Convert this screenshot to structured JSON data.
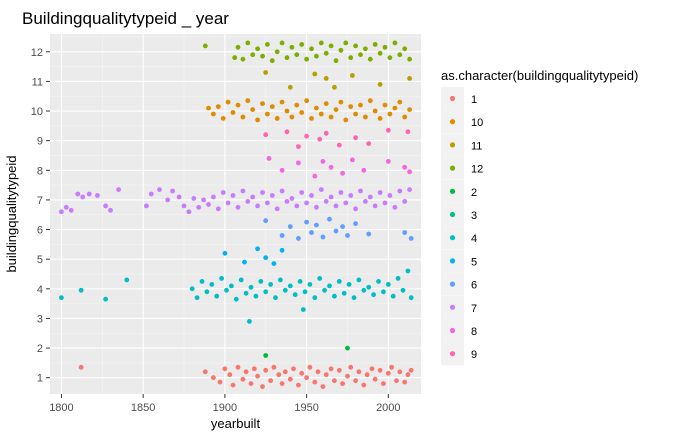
{
  "chart_data": {
    "type": "scatter",
    "title": "Buildingqualitytypeid _ year",
    "xlabel": "yearbuilt",
    "ylabel": "buildingqualitytypeid",
    "xlim": [
      1793,
      2020
    ],
    "ylim": [
      0.45,
      12.6
    ],
    "x_ticks": [
      1800,
      1850,
      1900,
      1950,
      2000
    ],
    "y_ticks": [
      1,
      2,
      3,
      4,
      5,
      6,
      7,
      8,
      9,
      10,
      11,
      12
    ],
    "grid": true,
    "legend_position": "right",
    "legend_title": "as.character(buildingqualitytypeid)",
    "jitter": "points are jittered vertically by about ±0.4 around each integer category",
    "series": [
      {
        "name": "1",
        "y": 1,
        "color": "#F8766D",
        "points": [
          [
            1812,
            1.35
          ],
          [
            1888,
            1.2
          ],
          [
            1893,
            1.0
          ],
          [
            1897,
            0.85
          ],
          [
            1900,
            1.3
          ],
          [
            1903,
            1.1
          ],
          [
            1905,
            0.75
          ],
          [
            1908,
            1.35
          ],
          [
            1911,
            0.95
          ],
          [
            1913,
            1.2
          ],
          [
            1916,
            0.8
          ],
          [
            1918,
            1.3
          ],
          [
            1920,
            1.05
          ],
          [
            1923,
            0.7
          ],
          [
            1925,
            1.25
          ],
          [
            1928,
            0.9
          ],
          [
            1930,
            1.35
          ],
          [
            1933,
            1.1
          ],
          [
            1935,
            0.8
          ],
          [
            1937,
            1.2
          ],
          [
            1940,
            0.95
          ],
          [
            1942,
            1.3
          ],
          [
            1945,
            0.75
          ],
          [
            1947,
            1.15
          ],
          [
            1950,
            1.0
          ],
          [
            1952,
            1.35
          ],
          [
            1955,
            0.85
          ],
          [
            1957,
            1.2
          ],
          [
            1960,
            0.7
          ],
          [
            1962,
            1.1
          ],
          [
            1965,
            1.3
          ],
          [
            1967,
            0.9
          ],
          [
            1970,
            1.25
          ],
          [
            1972,
            0.8
          ],
          [
            1975,
            1.05
          ],
          [
            1977,
            1.35
          ],
          [
            1980,
            0.9
          ],
          [
            1982,
            1.2
          ],
          [
            1985,
            0.75
          ],
          [
            1987,
            1.1
          ],
          [
            1990,
            1.3
          ],
          [
            1992,
            0.95
          ],
          [
            1995,
            1.25
          ],
          [
            1997,
            0.8
          ],
          [
            2000,
            1.15
          ],
          [
            2002,
            1.35
          ],
          [
            2005,
            0.9
          ],
          [
            2007,
            1.2
          ],
          [
            2010,
            0.85
          ],
          [
            2012,
            1.1
          ],
          [
            2014,
            1.25
          ]
        ]
      },
      {
        "name": "10",
        "y": 10,
        "color": "#DE8C00",
        "points": [
          [
            1890,
            10.1
          ],
          [
            1893,
            9.9
          ],
          [
            1896,
            10.15
          ],
          [
            1899,
            9.75
          ],
          [
            1902,
            10.3
          ],
          [
            1905,
            9.95
          ],
          [
            1908,
            10.2
          ],
          [
            1911,
            9.8
          ],
          [
            1914,
            10.35
          ],
          [
            1917,
            10.05
          ],
          [
            1920,
            9.7
          ],
          [
            1923,
            10.25
          ],
          [
            1926,
            9.9
          ],
          [
            1929,
            10.15
          ],
          [
            1932,
            9.75
          ],
          [
            1935,
            10.3
          ],
          [
            1938,
            10.0
          ],
          [
            1941,
            9.8
          ],
          [
            1944,
            10.2
          ],
          [
            1947,
            9.95
          ],
          [
            1950,
            10.35
          ],
          [
            1953,
            9.75
          ],
          [
            1956,
            10.1
          ],
          [
            1959,
            9.9
          ],
          [
            1962,
            10.25
          ],
          [
            1965,
            9.8
          ],
          [
            1968,
            10.05
          ],
          [
            1971,
            10.3
          ],
          [
            1974,
            9.7
          ],
          [
            1977,
            10.15
          ],
          [
            1980,
            9.9
          ],
          [
            1983,
            10.2
          ],
          [
            1986,
            9.8
          ],
          [
            1989,
            10.35
          ],
          [
            1992,
            10.0
          ],
          [
            1995,
            9.75
          ],
          [
            1998,
            10.2
          ],
          [
            2001,
            9.9
          ],
          [
            2004,
            10.1
          ],
          [
            2007,
            10.3
          ],
          [
            2010,
            9.8
          ],
          [
            2013,
            10.05
          ]
        ]
      },
      {
        "name": "11",
        "y": 11,
        "color": "#B79F00",
        "points": [
          [
            1925,
            11.3
          ],
          [
            1940,
            10.8
          ],
          [
            1955,
            11.25
          ],
          [
            1962,
            11.1
          ],
          [
            1967,
            10.8
          ],
          [
            1978,
            11.2
          ],
          [
            1995,
            10.9
          ],
          [
            2013,
            11.1
          ]
        ]
      },
      {
        "name": "12",
        "y": 12,
        "color": "#7CAE00",
        "points": [
          [
            1888,
            12.2
          ],
          [
            1906,
            11.8
          ],
          [
            1908,
            12.15
          ],
          [
            1911,
            11.75
          ],
          [
            1914,
            12.3
          ],
          [
            1917,
            11.9
          ],
          [
            1920,
            12.1
          ],
          [
            1923,
            11.85
          ],
          [
            1926,
            12.25
          ],
          [
            1929,
            11.7
          ],
          [
            1932,
            12.0
          ],
          [
            1935,
            12.3
          ],
          [
            1938,
            11.8
          ],
          [
            1941,
            12.15
          ],
          [
            1944,
            11.9
          ],
          [
            1947,
            12.25
          ],
          [
            1950,
            11.75
          ],
          [
            1953,
            12.1
          ],
          [
            1956,
            11.85
          ],
          [
            1959,
            12.3
          ],
          [
            1962,
            11.95
          ],
          [
            1965,
            12.2
          ],
          [
            1968,
            11.7
          ],
          [
            1971,
            12.05
          ],
          [
            1974,
            12.3
          ],
          [
            1977,
            11.8
          ],
          [
            1980,
            12.2
          ],
          [
            1983,
            11.9
          ],
          [
            1986,
            12.1
          ],
          [
            1989,
            11.75
          ],
          [
            1992,
            12.25
          ],
          [
            1995,
            11.95
          ],
          [
            1998,
            12.15
          ],
          [
            2001,
            11.8
          ],
          [
            2004,
            12.3
          ],
          [
            2007,
            11.9
          ],
          [
            2010,
            12.1
          ],
          [
            2013,
            11.75
          ]
        ]
      },
      {
        "name": "2",
        "y": 2,
        "color": "#00BA38",
        "points": [
          [
            1925,
            1.75
          ],
          [
            1975,
            2.0
          ]
        ]
      },
      {
        "name": "3",
        "y": 3,
        "color": "#00C08B",
        "points": []
      },
      {
        "name": "4",
        "y": 4,
        "color": "#00BFC4",
        "points": [
          [
            1800,
            3.7
          ],
          [
            1812,
            3.95
          ],
          [
            1827,
            3.65
          ],
          [
            1840,
            4.3
          ],
          [
            1880,
            4.0
          ],
          [
            1883,
            3.7
          ],
          [
            1886,
            4.25
          ],
          [
            1889,
            3.9
          ],
          [
            1892,
            4.15
          ],
          [
            1895,
            3.75
          ],
          [
            1898,
            4.35
          ],
          [
            1901,
            3.95
          ],
          [
            1904,
            4.1
          ],
          [
            1907,
            3.65
          ],
          [
            1910,
            4.3
          ],
          [
            1913,
            3.85
          ],
          [
            1915,
            2.9
          ],
          [
            1916,
            4.05
          ],
          [
            1919,
            3.75
          ],
          [
            1922,
            4.25
          ],
          [
            1925,
            3.9
          ],
          [
            1928,
            4.15
          ],
          [
            1931,
            3.7
          ],
          [
            1934,
            4.3
          ],
          [
            1937,
            3.95
          ],
          [
            1940,
            4.1
          ],
          [
            1943,
            3.8
          ],
          [
            1946,
            4.25
          ],
          [
            1948,
            3.3
          ],
          [
            1949,
            3.9
          ],
          [
            1952,
            4.15
          ],
          [
            1955,
            3.7
          ],
          [
            1958,
            4.35
          ],
          [
            1961,
            3.95
          ],
          [
            1964,
            4.1
          ],
          [
            1967,
            3.75
          ],
          [
            1970,
            4.25
          ],
          [
            1973,
            3.85
          ],
          [
            1976,
            4.15
          ],
          [
            1979,
            3.7
          ],
          [
            1982,
            4.3
          ],
          [
            1985,
            3.95
          ],
          [
            1988,
            4.05
          ],
          [
            1991,
            3.8
          ],
          [
            1994,
            4.25
          ],
          [
            1997,
            3.9
          ],
          [
            2000,
            4.15
          ],
          [
            2003,
            3.75
          ],
          [
            2006,
            4.35
          ],
          [
            2009,
            3.95
          ],
          [
            2012,
            4.6
          ],
          [
            2014,
            3.7
          ]
        ]
      },
      {
        "name": "5",
        "y": 5,
        "color": "#00B4F0",
        "points": [
          [
            1900,
            5.2
          ],
          [
            1912,
            4.9
          ],
          [
            1920,
            5.35
          ],
          [
            1925,
            5.05
          ],
          [
            1930,
            4.85
          ],
          [
            1935,
            5.3
          ]
        ]
      },
      {
        "name": "6",
        "y": 6,
        "color": "#619CFF",
        "points": [
          [
            1925,
            6.3
          ],
          [
            1935,
            5.8
          ],
          [
            1940,
            6.1
          ],
          [
            1945,
            5.7
          ],
          [
            1950,
            6.25
          ],
          [
            1953,
            5.9
          ],
          [
            1956,
            6.15
          ],
          [
            1960,
            5.75
          ],
          [
            1964,
            6.35
          ],
          [
            1968,
            5.95
          ],
          [
            1972,
            6.1
          ],
          [
            1975,
            5.8
          ],
          [
            1980,
            6.2
          ],
          [
            1988,
            5.85
          ],
          [
            2010,
            5.9
          ],
          [
            2014,
            5.7
          ]
        ]
      },
      {
        "name": "7",
        "y": 7,
        "color": "#C77CFF",
        "points": [
          [
            1800,
            6.6
          ],
          [
            1803,
            6.75
          ],
          [
            1806,
            6.65
          ],
          [
            1810,
            7.2
          ],
          [
            1813,
            7.1
          ],
          [
            1817,
            7.2
          ],
          [
            1822,
            7.15
          ],
          [
            1827,
            6.8
          ],
          [
            1830,
            6.65
          ],
          [
            1835,
            7.35
          ],
          [
            1852,
            6.8
          ],
          [
            1855,
            7.2
          ],
          [
            1860,
            7.35
          ],
          [
            1865,
            7.0
          ],
          [
            1868,
            7.3
          ],
          [
            1872,
            7.1
          ],
          [
            1875,
            6.8
          ],
          [
            1878,
            6.6
          ],
          [
            1881,
            7.05
          ],
          [
            1884,
            6.75
          ],
          [
            1887,
            7.0
          ],
          [
            1890,
            6.85
          ],
          [
            1893,
            7.1
          ],
          [
            1896,
            6.7
          ],
          [
            1899,
            7.25
          ],
          [
            1902,
            6.9
          ],
          [
            1905,
            7.15
          ],
          [
            1908,
            6.75
          ],
          [
            1911,
            7.3
          ],
          [
            1914,
            6.95
          ],
          [
            1917,
            7.1
          ],
          [
            1920,
            6.8
          ],
          [
            1923,
            7.25
          ],
          [
            1926,
            6.9
          ],
          [
            1929,
            7.15
          ],
          [
            1932,
            6.7
          ],
          [
            1935,
            7.3
          ],
          [
            1938,
            6.95
          ],
          [
            1941,
            7.05
          ],
          [
            1944,
            6.8
          ],
          [
            1947,
            7.25
          ],
          [
            1950,
            6.9
          ],
          [
            1953,
            7.15
          ],
          [
            1956,
            6.75
          ],
          [
            1959,
            7.35
          ],
          [
            1962,
            6.95
          ],
          [
            1965,
            7.1
          ],
          [
            1968,
            6.8
          ],
          [
            1971,
            7.25
          ],
          [
            1974,
            6.9
          ],
          [
            1977,
            7.15
          ],
          [
            1980,
            6.7
          ],
          [
            1983,
            7.3
          ],
          [
            1986,
            6.95
          ],
          [
            1989,
            7.1
          ],
          [
            1992,
            6.8
          ],
          [
            1995,
            7.25
          ],
          [
            1998,
            6.9
          ],
          [
            2001,
            7.15
          ],
          [
            2004,
            6.75
          ],
          [
            2007,
            7.3
          ],
          [
            2010,
            6.95
          ],
          [
            2013,
            7.35
          ]
        ]
      },
      {
        "name": "8",
        "y": 8,
        "color": "#F564E3",
        "points": [
          [
            1927,
            8.4
          ],
          [
            1935,
            8.0
          ],
          [
            1945,
            8.25
          ],
          [
            1955,
            7.8
          ],
          [
            1960,
            8.3
          ],
          [
            1965,
            8.1
          ],
          [
            1972,
            7.9
          ],
          [
            1978,
            8.35
          ],
          [
            1985,
            8.0
          ],
          [
            2000,
            8.3
          ],
          [
            2010,
            8.1
          ],
          [
            2013,
            7.95
          ]
        ]
      },
      {
        "name": "9",
        "y": 9,
        "color": "#FF64B0",
        "points": [
          [
            1925,
            9.2
          ],
          [
            1938,
            9.3
          ],
          [
            1945,
            8.8
          ],
          [
            1950,
            9.15
          ],
          [
            1958,
            9.05
          ],
          [
            1962,
            9.25
          ],
          [
            1970,
            8.85
          ],
          [
            1980,
            9.1
          ],
          [
            1988,
            8.9
          ],
          [
            2000,
            9.35
          ],
          [
            2012,
            9.3
          ]
        ]
      }
    ]
  }
}
